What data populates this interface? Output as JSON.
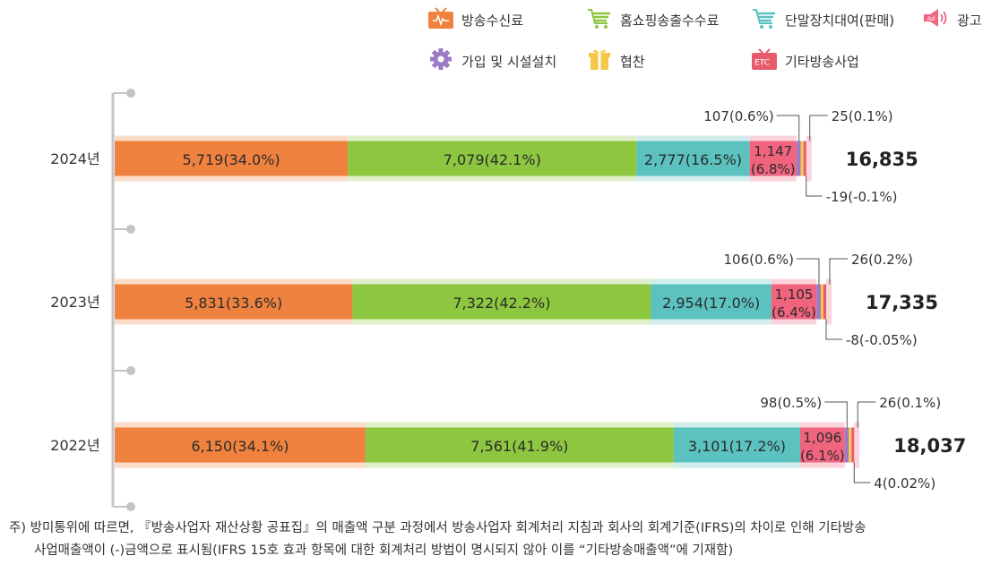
{
  "legend": [
    {
      "label": "방송수신료",
      "color": "#f0823f",
      "icon": "tv-icon"
    },
    {
      "label": "홈쇼핑송출수수료",
      "color": "#8dc63f",
      "icon": "cart-icon"
    },
    {
      "label": "단말장치대여(판매)",
      "color": "#5bc2bf",
      "icon": "cart-icon"
    },
    {
      "label": "광고",
      "color": "#f0647e",
      "icon": "ad-speaker-icon"
    },
    {
      "label": "가입 및 시설설치",
      "color": "#9b7cc4",
      "icon": "gear-icon"
    },
    {
      "label": "협찬",
      "color": "#f7c74a",
      "icon": "gift-icon"
    },
    {
      "label": "기타방송사업",
      "color": "#e85a6a",
      "icon": "etc-tv-icon"
    }
  ],
  "chart_data": {
    "type": "bar",
    "orientation": "horizontal-stacked",
    "categories": [
      "2024년",
      "2023년",
      "2022년"
    ],
    "series": [
      {
        "name": "방송수신료",
        "color": "#f0823f",
        "values": [
          5719,
          5831,
          6150
        ],
        "labels": [
          "5,719(34.0%)",
          "5,831(33.6%)",
          "6,150(34.1%)"
        ]
      },
      {
        "name": "홈쇼핑송출수수료",
        "color": "#8dc63f",
        "values": [
          7079,
          7322,
          7561
        ],
        "labels": [
          "7,079(42.1%)",
          "7,322(42.2%)",
          "7,561(41.9%)"
        ]
      },
      {
        "name": "단말장치대여(판매)",
        "color": "#5bc2bf",
        "values": [
          2777,
          2954,
          3101
        ],
        "labels": [
          "2,777(16.5%)",
          "2,954(17.0%)",
          "3,101(17.2%)"
        ]
      },
      {
        "name": "광고",
        "color": "#f0647e",
        "values": [
          1147,
          1105,
          1096
        ],
        "labels": [
          [
            "1,147",
            "(6.8%)"
          ],
          [
            "1,105",
            "(6.4%)"
          ],
          [
            "1,096",
            "(6.1%)"
          ]
        ]
      },
      {
        "name": "가입 및 시설설치",
        "color": "#9b7cc4",
        "values": [
          107,
          106,
          98
        ],
        "labels": [
          "107(0.6%)",
          "106(0.6%)",
          "98(0.5%)"
        ]
      },
      {
        "name": "협찬",
        "color": "#f7c74a",
        "values": [
          25,
          26,
          26
        ],
        "labels": [
          "25(0.1%)",
          "26(0.2%)",
          "26(0.1%)"
        ]
      },
      {
        "name": "기타방송사업",
        "color": "#e85a6a",
        "values": [
          -19,
          -8,
          4
        ],
        "labels": [
          "-19(-0.1%)",
          "-8(-0.05%)",
          "4(0.02%)"
        ]
      }
    ],
    "totals": [
      16835,
      17335,
      18037
    ],
    "total_labels": [
      "16,835",
      "17,335",
      "18,037"
    ],
    "xlim": [
      0,
      18037
    ]
  },
  "footnote": {
    "line1": "주) 방미통위에 따르면, 『방송사업자 재산상황 공표집』의 매출액 구분 과정에서 방송사업자 회계처리 지침과 회사의 회계기준(IFRS)의 차이로 인해 기타방송",
    "line2": "사업매출액이 (-)금액으로 표시됨(IFRS 15호 효과 항목에 대한 회계처리 방법이 명시되지 않아 이를 “기타방송매출액”에 기재함)"
  }
}
